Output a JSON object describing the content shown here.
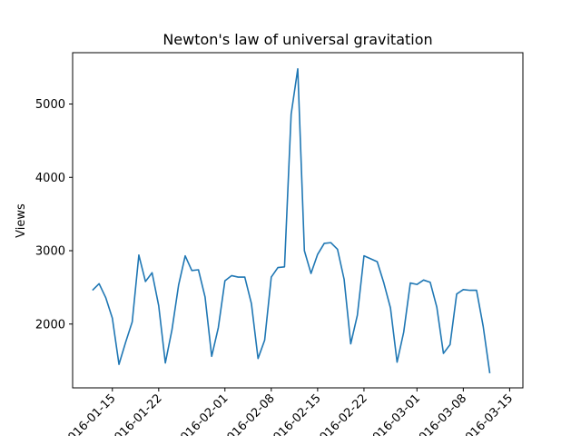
{
  "chart_data": {
    "type": "line",
    "title": "Newton's law of universal gravitation",
    "xlabel": "",
    "ylabel": "Views",
    "color": "#1f77b4",
    "grid": false,
    "legend": "none",
    "x_start": "2016-01-12",
    "x_ticks": [
      "2016-01-15",
      "2016-01-22",
      "2016-02-01",
      "2016-02-08",
      "2016-02-15",
      "2016-02-22",
      "2016-03-01",
      "2016-03-08",
      "2016-03-15"
    ],
    "y_ticks": [
      2000,
      3000,
      4000,
      5000
    ],
    "ylim": [
      1130,
      5700
    ],
    "xlim": [
      "2016-01-09",
      "2016-03-17"
    ],
    "series": [
      {
        "values": [
          2460,
          2550,
          2360,
          2080,
          1450,
          1750,
          2030,
          2940,
          2580,
          2700,
          2250,
          1470,
          1920,
          2530,
          2930,
          2730,
          2740,
          2370,
          1560,
          1950,
          2590,
          2660,
          2640,
          2640,
          2280,
          1530,
          1780,
          2640,
          2770,
          2780,
          4860,
          5480,
          3000,
          2690,
          2950,
          3100,
          3110,
          3020,
          2610,
          1730,
          2120,
          2930,
          2890,
          2850,
          2560,
          2220,
          1480,
          1890,
          2560,
          2540,
          2600,
          2570,
          2230,
          1600,
          1720,
          2410,
          2470,
          2460,
          2460,
          1970,
          1330
        ]
      }
    ]
  }
}
